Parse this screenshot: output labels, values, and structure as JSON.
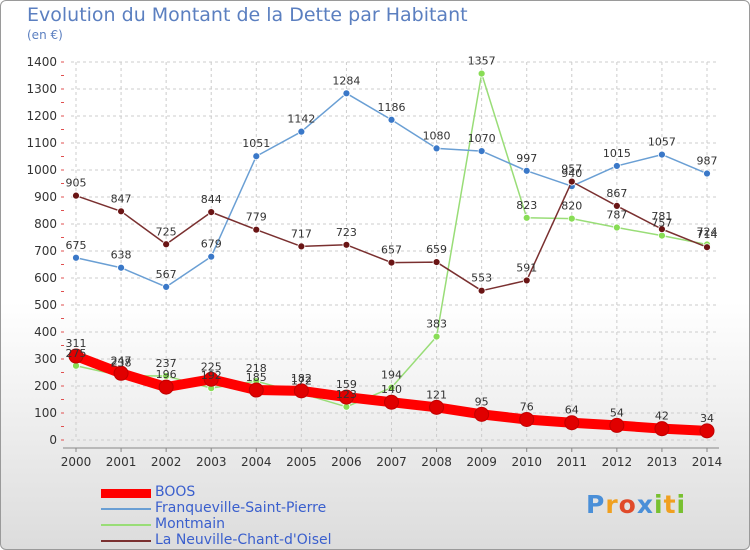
{
  "title": "Evolution du Montant de la Dette par Habitant",
  "unit_label": "(en €)",
  "logo": {
    "letters": [
      {
        "ch": "P",
        "color": "#4a8fd8"
      },
      {
        "ch": "r",
        "color": "#f0a020"
      },
      {
        "ch": "o",
        "color": "#e04a2a"
      },
      {
        "ch": "x",
        "color": "#4a8fd8"
      },
      {
        "ch": "i",
        "color": "#78c030"
      },
      {
        "ch": "t",
        "color": "#f0a020"
      },
      {
        "ch": "i",
        "color": "#78c030"
      }
    ]
  },
  "chart_data": {
    "type": "line",
    "title": "Evolution du Montant de la Dette par Habitant",
    "ylabel": "(en €)",
    "xlabel": "",
    "ylim": [
      0,
      1400
    ],
    "yticks": [
      0,
      100,
      200,
      300,
      400,
      500,
      600,
      700,
      800,
      900,
      1000,
      1100,
      1200,
      1300,
      1400
    ],
    "grid": true,
    "legend_position": "bottom-left",
    "x": [
      "2000",
      "2001",
      "2002",
      "2003",
      "2004",
      "2005",
      "2006",
      "2007",
      "2008",
      "2009",
      "2010",
      "2011",
      "2012",
      "2013",
      "2014"
    ],
    "series": [
      {
        "name": "BOOS",
        "color": "#ff0000",
        "marker_color": "#e00000",
        "values": [
          311,
          247,
          196,
          225,
          185,
          182,
          159,
          140,
          121,
          95,
          76,
          64,
          54,
          42,
          34
        ]
      },
      {
        "name": "Franqueville-Saint-Pierre",
        "color": "#6a9fd4",
        "marker_color": "#3a78c8",
        "values": [
          675,
          638,
          567,
          679,
          1051,
          1142,
          1284,
          1186,
          1080,
          1070,
          997,
          940,
          1015,
          1057,
          987
        ]
      },
      {
        "name": "Montmain",
        "color": "#99dd77",
        "marker_color": "#88dd55",
        "values": [
          275,
          238,
          237,
          192,
          218,
          172,
          123,
          194,
          383,
          1357,
          823,
          820,
          787,
          757,
          724
        ]
      },
      {
        "name": "La Neuville-Chant-d'Oisel",
        "color": "#7a3030",
        "marker_color": "#6a1515",
        "values": [
          905,
          847,
          725,
          844,
          779,
          717,
          723,
          657,
          659,
          553,
          591,
          957,
          867,
          781,
          714
        ]
      }
    ]
  }
}
